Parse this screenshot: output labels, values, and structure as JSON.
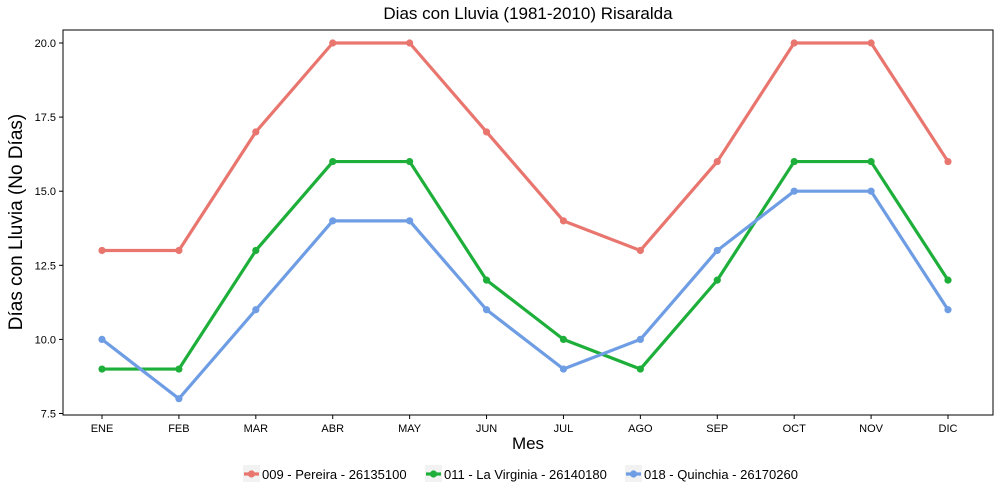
{
  "chart_data": {
    "type": "line",
    "title": "Dias con Lluvia (1981-2010)  Risaralda",
    "xlabel": "Mes",
    "ylabel": "Días con Lluvia (No Días)",
    "categories": [
      "ENE",
      "FEB",
      "MAR",
      "ABR",
      "MAY",
      "JUN",
      "JUL",
      "AGO",
      "SEP",
      "OCT",
      "NOV",
      "DIC"
    ],
    "ylim": [
      7.5,
      21
    ],
    "yticks": [
      7.5,
      10.0,
      12.5,
      15.0,
      17.5,
      20.0
    ],
    "ytick_labels": [
      "7.5",
      "10.0",
      "12.5",
      "15.0",
      "17.5",
      "20.0"
    ],
    "grid": false,
    "legend_position": "bottom",
    "series": [
      {
        "name": "009 - Pereira - 26135100",
        "color": "#E8766F",
        "values": [
          13,
          13,
          17,
          20,
          20,
          17,
          14,
          13,
          16,
          20,
          20,
          16
        ]
      },
      {
        "name": "011 - La Virginia - 26140180",
        "color": "#1EAF3A",
        "values": [
          9,
          9,
          13,
          16,
          16,
          12,
          10,
          9,
          12,
          16,
          16,
          12
        ]
      },
      {
        "name": "018 - Quinchia - 26170260",
        "color": "#6E9DE4",
        "values": [
          10,
          8,
          11,
          14,
          14,
          11,
          9,
          10,
          13,
          15,
          15,
          11
        ]
      }
    ]
  }
}
